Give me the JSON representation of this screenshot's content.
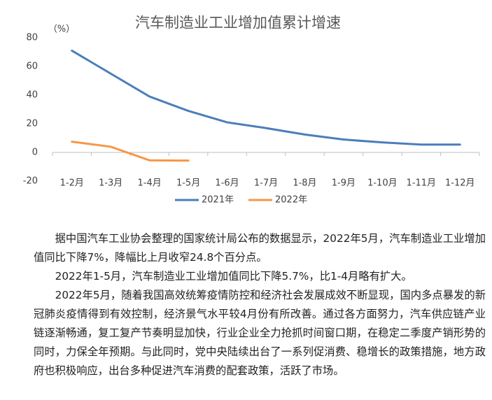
{
  "chart_data": {
    "type": "line",
    "title": "汽车制造业工业增加值累计增速",
    "y_label": "（%）",
    "categories": [
      "1-2月",
      "1-3月",
      "1-4月",
      "1-5月",
      "1-6月",
      "1-7月",
      "1-8月",
      "1-9月",
      "1-10月",
      "1-11月",
      "1-12月"
    ],
    "series": [
      {
        "name": "2021年",
        "color": "#4a7ebb",
        "values": [
          71,
          55,
          39,
          29,
          21,
          17,
          12.5,
          9,
          7,
          5.5,
          5.5
        ]
      },
      {
        "name": "2022年",
        "color": "#f79646",
        "values": [
          7.5,
          4,
          -5.5,
          -5.7,
          null,
          null,
          null,
          null,
          null,
          null,
          null
        ]
      }
    ],
    "ylim": [
      -20,
      80
    ],
    "yticks": [
      -20,
      0,
      20,
      40,
      60,
      80
    ],
    "legend": "bottom"
  },
  "paragraphs": [
    "据中国汽车工业协会整理的国家统计局公布的数据显示，2022年5月，汽车制造业工业增加值同比下降7%，降幅比上月收窄24.8个百分点。",
    "2022年1-5月，汽车制造业工业增加值同比下降5.7%，比1-4月略有扩大。",
    "2022年5月，随着我国高效统筹疫情防控和经济社会发展成效不断显现，国内多点暴发的新冠肺炎疫情得到有效控制，经济景气水平较4月份有所改善。通过各方面努力，汽车供应链产业链逐渐畅通，复工复产节奏明显加快，行业企业全力抢抓时间窗口期，在稳定二季度产销形势的同时，力保全年预期。与此同时，党中央陆续出台了一系列促消费、稳增长的政策措施，地方政府也积极响应，出台多种促进汽车消费的配套政策，活跃了市场。"
  ]
}
